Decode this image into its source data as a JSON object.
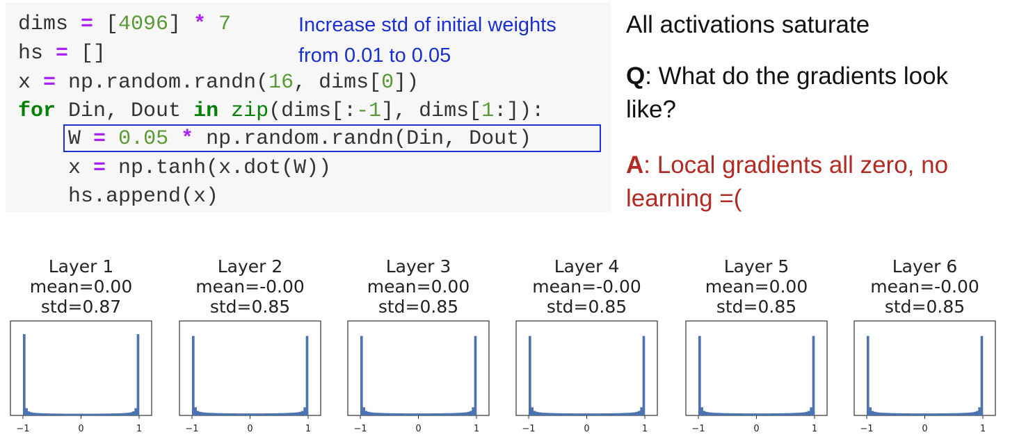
{
  "code": {
    "line1": {
      "a": "dims ",
      "b": "=",
      "c": " [",
      "d": "4096",
      "e": "] ",
      "f": "*",
      "g": " ",
      "h": "7"
    },
    "line2": {
      "a": "hs ",
      "b": "=",
      "c": " []"
    },
    "line3": {
      "a": "x ",
      "b": "=",
      "c": " np.random.randn(",
      "d": "16",
      "e": ", dims[",
      "f": "0",
      "g": "])"
    },
    "line4": {
      "a": "for",
      "b": " Din, Dout ",
      "c": "in",
      "d": " ",
      "e": "zip",
      "f": "(dims[:",
      "g": "-1",
      "h": "], dims[",
      "i": "1",
      "j": ":]):"
    },
    "line5": {
      "a": "    W ",
      "b": "=",
      "c": " ",
      "d": "0.05",
      "e": " ",
      "f": "*",
      "g": " np.random.randn(Din, Dout)"
    },
    "line6": {
      "a": "    x ",
      "b": "=",
      "c": " np.tanh(x.dot(W))"
    },
    "line7": {
      "a": "    hs.append(x)"
    }
  },
  "annotation": {
    "line1": "Increase std of initial weights",
    "line2": "from 0.01 to 0.05"
  },
  "side": {
    "statement": "All activations saturate",
    "q_prefix": "Q",
    "q_text": ": What do the gradients look like?",
    "a_prefix": "A",
    "a_text": ": Local gradients all zero, no learning =("
  },
  "colors": {
    "bar": "#4c72b0",
    "highlight_box": "#1f2fd6",
    "annotation": "#1a2fd1",
    "answer": "#b22a22"
  },
  "chart_data": [
    {
      "type": "bar",
      "title": "Layer 1",
      "mean_label": "mean=0.00",
      "std_label": "std=0.87",
      "xlim": [
        -1,
        1
      ],
      "xticks": [
        "−1",
        "0",
        "1"
      ],
      "bins": 50,
      "density": [
        0.9,
        0.08,
        0.045,
        0.035,
        0.03,
        0.028,
        0.026,
        0.025,
        0.024,
        0.023,
        0.022,
        0.022,
        0.021,
        0.021,
        0.02,
        0.02,
        0.02,
        0.019,
        0.019,
        0.019,
        0.019,
        0.019,
        0.019,
        0.019,
        0.019,
        0.019,
        0.019,
        0.019,
        0.019,
        0.019,
        0.019,
        0.019,
        0.019,
        0.02,
        0.02,
        0.02,
        0.021,
        0.021,
        0.022,
        0.022,
        0.023,
        0.024,
        0.025,
        0.026,
        0.028,
        0.03,
        0.035,
        0.045,
        0.08,
        0.9
      ]
    },
    {
      "type": "bar",
      "title": "Layer 2",
      "mean_label": "mean=-0.00",
      "std_label": "std=0.85",
      "xlim": [
        -1,
        1
      ],
      "xticks": [
        "−1",
        "0",
        "1"
      ],
      "bins": 50,
      "density": [
        0.88,
        0.09,
        0.05,
        0.04,
        0.035,
        0.032,
        0.03,
        0.029,
        0.028,
        0.027,
        0.026,
        0.025,
        0.025,
        0.024,
        0.024,
        0.023,
        0.023,
        0.023,
        0.023,
        0.022,
        0.022,
        0.022,
        0.022,
        0.022,
        0.022,
        0.022,
        0.022,
        0.022,
        0.022,
        0.022,
        0.022,
        0.023,
        0.023,
        0.023,
        0.023,
        0.024,
        0.024,
        0.025,
        0.025,
        0.026,
        0.027,
        0.028,
        0.029,
        0.03,
        0.032,
        0.035,
        0.04,
        0.05,
        0.09,
        0.88
      ]
    },
    {
      "type": "bar",
      "title": "Layer 3",
      "mean_label": "mean=0.00",
      "std_label": "std=0.85",
      "xlim": [
        -1,
        1
      ],
      "xticks": [
        "−1",
        "0",
        "1"
      ],
      "bins": 50,
      "density": [
        0.88,
        0.09,
        0.05,
        0.04,
        0.035,
        0.032,
        0.03,
        0.029,
        0.028,
        0.027,
        0.026,
        0.025,
        0.025,
        0.024,
        0.024,
        0.023,
        0.023,
        0.023,
        0.023,
        0.022,
        0.022,
        0.022,
        0.022,
        0.022,
        0.022,
        0.022,
        0.022,
        0.022,
        0.022,
        0.022,
        0.022,
        0.023,
        0.023,
        0.023,
        0.023,
        0.024,
        0.024,
        0.025,
        0.025,
        0.026,
        0.027,
        0.028,
        0.029,
        0.03,
        0.032,
        0.035,
        0.04,
        0.05,
        0.09,
        0.88
      ]
    },
    {
      "type": "bar",
      "title": "Layer 4",
      "mean_label": "mean=-0.00",
      "std_label": "std=0.85",
      "xlim": [
        -1,
        1
      ],
      "xticks": [
        "−1",
        "0",
        "1"
      ],
      "bins": 50,
      "density": [
        0.88,
        0.09,
        0.05,
        0.04,
        0.035,
        0.032,
        0.03,
        0.029,
        0.028,
        0.027,
        0.026,
        0.025,
        0.025,
        0.024,
        0.024,
        0.023,
        0.023,
        0.023,
        0.023,
        0.022,
        0.022,
        0.022,
        0.022,
        0.022,
        0.022,
        0.022,
        0.022,
        0.022,
        0.022,
        0.022,
        0.022,
        0.023,
        0.023,
        0.023,
        0.023,
        0.024,
        0.024,
        0.025,
        0.025,
        0.026,
        0.027,
        0.028,
        0.029,
        0.03,
        0.032,
        0.035,
        0.04,
        0.05,
        0.09,
        0.88
      ]
    },
    {
      "type": "bar",
      "title": "Layer 5",
      "mean_label": "mean=0.00",
      "std_label": "std=0.85",
      "xlim": [
        -1,
        1
      ],
      "xticks": [
        "−1",
        "0",
        "1"
      ],
      "bins": 50,
      "density": [
        0.88,
        0.09,
        0.05,
        0.04,
        0.035,
        0.032,
        0.03,
        0.029,
        0.028,
        0.027,
        0.026,
        0.025,
        0.025,
        0.024,
        0.024,
        0.023,
        0.023,
        0.023,
        0.023,
        0.022,
        0.022,
        0.022,
        0.022,
        0.022,
        0.022,
        0.022,
        0.022,
        0.022,
        0.022,
        0.022,
        0.022,
        0.023,
        0.023,
        0.023,
        0.023,
        0.024,
        0.024,
        0.025,
        0.025,
        0.026,
        0.027,
        0.028,
        0.029,
        0.03,
        0.032,
        0.035,
        0.04,
        0.05,
        0.09,
        0.88
      ]
    },
    {
      "type": "bar",
      "title": "Layer 6",
      "mean_label": "mean=-0.00",
      "std_label": "std=0.85",
      "xlim": [
        -1,
        1
      ],
      "xticks": [
        "−1",
        "0",
        "1"
      ],
      "bins": 50,
      "density": [
        0.88,
        0.09,
        0.05,
        0.04,
        0.035,
        0.032,
        0.03,
        0.029,
        0.028,
        0.027,
        0.026,
        0.025,
        0.025,
        0.024,
        0.024,
        0.023,
        0.023,
        0.023,
        0.023,
        0.022,
        0.022,
        0.022,
        0.022,
        0.022,
        0.022,
        0.022,
        0.022,
        0.022,
        0.022,
        0.022,
        0.022,
        0.023,
        0.023,
        0.023,
        0.023,
        0.024,
        0.024,
        0.025,
        0.025,
        0.026,
        0.027,
        0.028,
        0.029,
        0.03,
        0.032,
        0.035,
        0.04,
        0.05,
        0.09,
        0.88
      ]
    }
  ]
}
